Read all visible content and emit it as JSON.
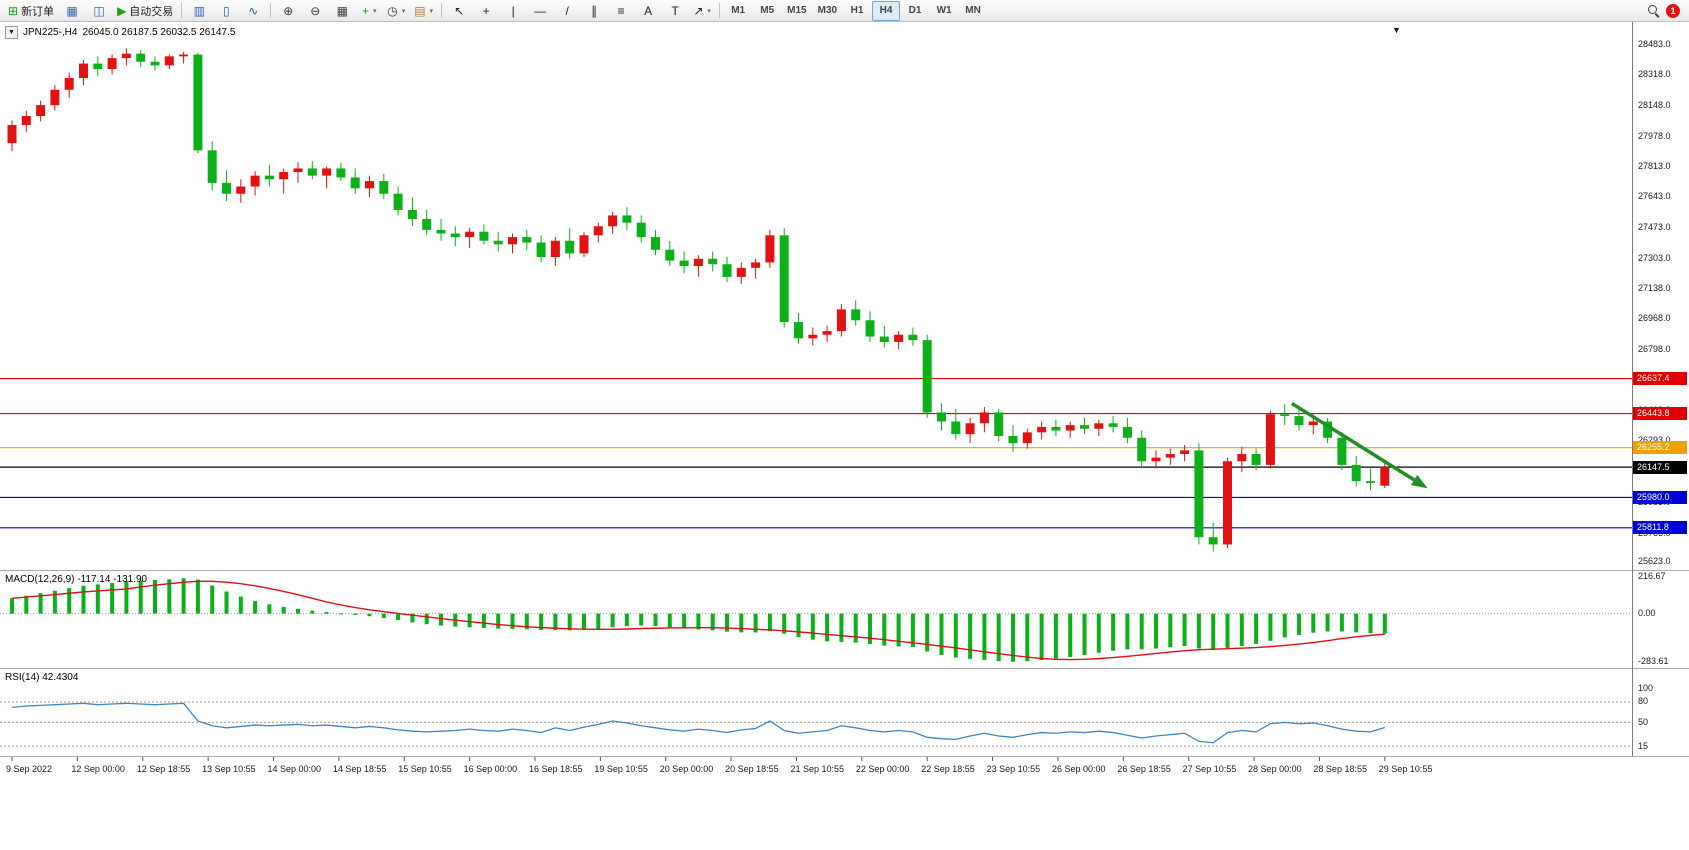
{
  "toolbar": {
    "dropdown_glyph": "▾",
    "groups": [
      {
        "name": "trade",
        "buttons": [
          {
            "name": "new-order",
            "glyph": "⊞",
            "glyph_color": "#1d9e1d",
            "label": "新订单"
          },
          {
            "name": "new-chart",
            "glyph": "▦",
            "glyph_color": "#3566a8"
          },
          {
            "name": "profiles",
            "glyph": "◫",
            "glyph_color": "#3566a8"
          },
          {
            "name": "autotrading",
            "glyph": "▶",
            "glyph_color": "#1d9e1d",
            "label": "自动交易"
          }
        ]
      },
      {
        "name": "chart-types",
        "buttons": [
          {
            "name": "bar-chart",
            "glyph": "▥",
            "glyph_color": "#2a5db0"
          },
          {
            "name": "candlestick-chart",
            "glyph": "▯",
            "glyph_color": "#2a5db0"
          },
          {
            "name": "line-chart",
            "glyph": "∿",
            "glyph_color": "#2a5db0"
          }
        ]
      },
      {
        "name": "zoom-and-windows",
        "buttons": [
          {
            "name": "zoom-in",
            "glyph": "⊕",
            "glyph_color": "#3a3a3a"
          },
          {
            "name": "zoom-out",
            "glyph": "⊖",
            "glyph_color": "#3a3a3a"
          },
          {
            "name": "tile-windows",
            "glyph": "▦",
            "glyph_color": "#3a3a3a"
          },
          {
            "name": "indicators",
            "glyph": "+",
            "glyph_color": "#1d9e1d",
            "dropdown": true
          },
          {
            "name": "periods",
            "glyph": "◷",
            "glyph_color": "#3a3a3a",
            "dropdown": true
          },
          {
            "name": "templates",
            "glyph": "▤",
            "glyph_color": "#b08030",
            "dropdown": true
          }
        ]
      },
      {
        "name": "drawing-tools",
        "buttons": [
          {
            "name": "cursor",
            "glyph": "↖",
            "glyph_color": "#222222"
          },
          {
            "name": "crosshair",
            "glyph": "+",
            "glyph_color": "#222222"
          },
          {
            "name": "vertical-line",
            "glyph": "|",
            "glyph_color": "#222222"
          },
          {
            "name": "horizontal-line",
            "glyph": "—",
            "glyph_color": "#222222"
          },
          {
            "name": "trendline",
            "glyph": "/",
            "glyph_color": "#222222"
          },
          {
            "name": "equidistant-channel",
            "glyph": "∥",
            "glyph_color": "#222222"
          },
          {
            "name": "fibonacci",
            "glyph": "≡",
            "glyph_color": "#222222"
          },
          {
            "name": "text",
            "glyph": "A",
            "glyph_color": "#222222"
          },
          {
            "name": "text-label",
            "glyph": "T",
            "glyph_color": "#222222"
          },
          {
            "name": "arrows",
            "glyph": "↗",
            "glyph_color": "#222222",
            "dropdown": true
          }
        ]
      }
    ],
    "timeframes": {
      "items": [
        "M1",
        "M5",
        "M15",
        "M30",
        "H1",
        "H4",
        "D1",
        "W1",
        "MN"
      ],
      "active": "H4"
    },
    "notification_badge": "1"
  },
  "chart": {
    "symbol_title": "JPN225-,H4",
    "ohlc": "26045.0 26187.5 26032.5 26147.5",
    "icons": {
      "collapse": "▼",
      "scroll_end": "▼"
    },
    "price_axis_ticks": [
      "28483.0",
      "28318.0",
      "28148.0",
      "27978.0",
      "27813.0",
      "27643.0",
      "27473.0",
      "27303.0",
      "27138.0",
      "26968.0",
      "26798.0",
      "26628.0",
      "26463.0",
      "26293.0",
      "26123.0",
      "25953.0",
      "25783.0",
      "25623.0"
    ],
    "lines": [
      {
        "label": "26637.4",
        "price": 26637.4,
        "color": "#e00000"
      },
      {
        "label": "26443.8",
        "price": 26443.8,
        "color": "#e00000"
      },
      {
        "label": "26255.2",
        "price": 26255.2,
        "color": "#f0a000"
      },
      {
        "label": "25980.0",
        "price": 25980.0,
        "color": "#0000d8"
      },
      {
        "label": "25811.8",
        "price": 25811.8,
        "color": "#0000d8"
      }
    ],
    "current_price": {
      "label": "26147.5",
      "price": 26147.5,
      "color": "#000000"
    },
    "arrow": {
      "color": "#1f8f1f",
      "from_index": 89.5,
      "from_price": 26500,
      "to_index": 99,
      "to_price": 26030
    }
  },
  "chart_data": {
    "type": "candlestick",
    "title": "JPN225-,H4 26045.0 26187.5 26032.5 26147.5",
    "symbol": "JPN225-",
    "timeframe": "H4",
    "up_color": "#e31212",
    "down_color": "#0cb018",
    "price_axis_range": [
      25570,
      28610
    ],
    "candles": [
      [
        27940,
        28065,
        27895,
        28040
      ],
      [
        28040,
        28120,
        28000,
        28090
      ],
      [
        28090,
        28175,
        28060,
        28150
      ],
      [
        28150,
        28260,
        28120,
        28235
      ],
      [
        28235,
        28330,
        28190,
        28300
      ],
      [
        28300,
        28400,
        28260,
        28380
      ],
      [
        28380,
        28420,
        28310,
        28350
      ],
      [
        28350,
        28430,
        28320,
        28410
      ],
      [
        28410,
        28465,
        28370,
        28435
      ],
      [
        28435,
        28455,
        28360,
        28390
      ],
      [
        28390,
        28420,
        28340,
        28370
      ],
      [
        28370,
        28430,
        28350,
        28420
      ],
      [
        28420,
        28445,
        28380,
        28430
      ],
      [
        28430,
        28440,
        27885,
        27900
      ],
      [
        27900,
        27950,
        27680,
        27720
      ],
      [
        27720,
        27790,
        27620,
        27660
      ],
      [
        27660,
        27740,
        27610,
        27700
      ],
      [
        27700,
        27785,
        27650,
        27760
      ],
      [
        27760,
        27820,
        27700,
        27740
      ],
      [
        27740,
        27800,
        27660,
        27780
      ],
      [
        27780,
        27835,
        27720,
        27800
      ],
      [
        27800,
        27840,
        27740,
        27760
      ],
      [
        27760,
        27810,
        27690,
        27800
      ],
      [
        27800,
        27830,
        27730,
        27750
      ],
      [
        27750,
        27800,
        27660,
        27690
      ],
      [
        27690,
        27760,
        27640,
        27730
      ],
      [
        27730,
        27770,
        27630,
        27660
      ],
      [
        27660,
        27700,
        27540,
        27570
      ],
      [
        27570,
        27640,
        27480,
        27520
      ],
      [
        27520,
        27570,
        27430,
        27460
      ],
      [
        27460,
        27520,
        27400,
        27440
      ],
      [
        27440,
        27480,
        27370,
        27420
      ],
      [
        27420,
        27470,
        27360,
        27450
      ],
      [
        27450,
        27490,
        27380,
        27400
      ],
      [
        27400,
        27450,
        27340,
        27380
      ],
      [
        27380,
        27440,
        27330,
        27420
      ],
      [
        27420,
        27460,
        27350,
        27390
      ],
      [
        27390,
        27430,
        27280,
        27310
      ],
      [
        27310,
        27420,
        27260,
        27400
      ],
      [
        27400,
        27470,
        27300,
        27330
      ],
      [
        27330,
        27450,
        27310,
        27430
      ],
      [
        27430,
        27500,
        27390,
        27480
      ],
      [
        27480,
        27560,
        27440,
        27540
      ],
      [
        27540,
        27585,
        27460,
        27500
      ],
      [
        27500,
        27540,
        27390,
        27420
      ],
      [
        27420,
        27460,
        27320,
        27350
      ],
      [
        27350,
        27400,
        27260,
        27290
      ],
      [
        27290,
        27340,
        27220,
        27260
      ],
      [
        27260,
        27320,
        27200,
        27300
      ],
      [
        27300,
        27340,
        27230,
        27270
      ],
      [
        27270,
        27310,
        27170,
        27200
      ],
      [
        27200,
        27280,
        27160,
        27250
      ],
      [
        27250,
        27300,
        27190,
        27280
      ],
      [
        27280,
        27460,
        27250,
        27430
      ],
      [
        27430,
        27470,
        26920,
        26950
      ],
      [
        26950,
        27000,
        26830,
        26860
      ],
      [
        26860,
        26920,
        26820,
        26880
      ],
      [
        26880,
        26930,
        26840,
        26900
      ],
      [
        26900,
        27050,
        26870,
        27020
      ],
      [
        27020,
        27070,
        26930,
        26960
      ],
      [
        26960,
        27010,
        26840,
        26870
      ],
      [
        26870,
        26930,
        26810,
        26840
      ],
      [
        26840,
        26900,
        26800,
        26880
      ],
      [
        26880,
        26920,
        26820,
        26850
      ],
      [
        26850,
        26880,
        26420,
        26450
      ],
      [
        26450,
        26500,
        26350,
        26400
      ],
      [
        26400,
        26470,
        26300,
        26330
      ],
      [
        26330,
        26420,
        26280,
        26390
      ],
      [
        26390,
        26480,
        26340,
        26450
      ],
      [
        26450,
        26470,
        26290,
        26320
      ],
      [
        26320,
        26380,
        26230,
        26280
      ],
      [
        26280,
        26360,
        26250,
        26340
      ],
      [
        26340,
        26400,
        26300,
        26370
      ],
      [
        26370,
        26410,
        26320,
        26350
      ],
      [
        26350,
        26400,
        26310,
        26380
      ],
      [
        26380,
        26420,
        26330,
        26360
      ],
      [
        26360,
        26410,
        26320,
        26390
      ],
      [
        26390,
        26430,
        26340,
        26370
      ],
      [
        26370,
        26420,
        26280,
        26310
      ],
      [
        26310,
        26350,
        26140,
        26180
      ],
      [
        26180,
        26240,
        26140,
        26200
      ],
      [
        26200,
        26250,
        26160,
        26220
      ],
      [
        26220,
        26270,
        26180,
        26240
      ],
      [
        26240,
        26280,
        25720,
        25760
      ],
      [
        25760,
        25840,
        25680,
        25720
      ],
      [
        25720,
        26200,
        25700,
        26180
      ],
      [
        26180,
        26260,
        26120,
        26220
      ],
      [
        26220,
        26250,
        26130,
        26160
      ],
      [
        26160,
        26460,
        26140,
        26440
      ],
      [
        26440,
        26495,
        26380,
        26430
      ],
      [
        26430,
        26470,
        26350,
        26380
      ],
      [
        26380,
        26430,
        26330,
        26400
      ],
      [
        26400,
        26420,
        26280,
        26310
      ],
      [
        26310,
        26340,
        26130,
        26160
      ],
      [
        26160,
        26210,
        26040,
        26070
      ],
      [
        26070,
        26140,
        26020,
        26060
      ],
      [
        26045,
        26187.5,
        26032.5,
        26147.5
      ]
    ],
    "time_labels": [
      "9 Sep 2022",
      "12 Sep 00:00",
      "12 Sep 18:55",
      "13 Sep 10:55",
      "14 Sep 00:00",
      "14 Sep 18:55",
      "15 Sep 10:55",
      "16 Sep 00:00",
      "16 Sep 18:55",
      "19 Sep 10:55",
      "20 Sep 00:00",
      "20 Sep 18:55",
      "21 Sep 10:55",
      "22 Sep 00:00",
      "22 Sep 18:55",
      "23 Sep 10:55",
      "26 Sep 00:00",
      "26 Sep 18:55",
      "27 Sep 10:55",
      "28 Sep 00:00",
      "28 Sep 18:55",
      "29 Sep 10:55"
    ],
    "indicators": {
      "macd": {
        "label": "MACD(12,26,9)",
        "values_text": "-117.14 -131.90",
        "axis": [
          "216.67",
          "0.00",
          "-283.61"
        ],
        "ylim": [
          -320,
          245
        ],
        "histogram_color": "#0cb018",
        "signal_color": "#e01010",
        "histogram": [
          90,
          105,
          120,
          135,
          150,
          165,
          172,
          180,
          190,
          195,
          198,
          202,
          208,
          200,
          165,
          130,
          100,
          75,
          55,
          40,
          28,
          18,
          10,
          2,
          -8,
          -15,
          -25,
          -38,
          -52,
          -62,
          -70,
          -76,
          -80,
          -84,
          -88,
          -90,
          -92,
          -96,
          -97,
          -98,
          -96,
          -90,
          -80,
          -73,
          -70,
          -73,
          -80,
          -88,
          -93,
          -98,
          -106,
          -110,
          -111,
          -103,
          -118,
          -138,
          -153,
          -163,
          -166,
          -170,
          -178,
          -188,
          -193,
          -196,
          -223,
          -243,
          -258,
          -266,
          -273,
          -279,
          -283,
          -280,
          -273,
          -265,
          -255,
          -243,
          -230,
          -218,
          -210,
          -210,
          -205,
          -198,
          -190,
          -205,
          -215,
          -205,
          -190,
          -178,
          -160,
          -140,
          -125,
          -112,
          -105,
          -105,
          -110,
          -115,
          -117.14
        ]
      },
      "rsi": {
        "label": "RSI(14)",
        "value_text": "42.4304",
        "axis": [
          "100",
          "80",
          "50",
          "15"
        ],
        "ylim": [
          0,
          100
        ],
        "levels": [
          80,
          50,
          15
        ],
        "line_color": "#3d85c8",
        "values": [
          72,
          74,
          75,
          76,
          77,
          78,
          76,
          77,
          78,
          77,
          76,
          77,
          78,
          52,
          45,
          42,
          44,
          46,
          45,
          46,
          47,
          45,
          46,
          44,
          42,
          44,
          42,
          39,
          37,
          36,
          37,
          38,
          40,
          38,
          37,
          40,
          38,
          35,
          42,
          38,
          43,
          47,
          52,
          49,
          45,
          42,
          39,
          37,
          40,
          38,
          35,
          39,
          41,
          52,
          38,
          34,
          36,
          38,
          45,
          42,
          38,
          36,
          38,
          36,
          28,
          26,
          25,
          30,
          34,
          30,
          28,
          32,
          35,
          34,
          36,
          35,
          37,
          35,
          31,
          27,
          30,
          32,
          34,
          22,
          20,
          35,
          38,
          36,
          48,
          50,
          48,
          49,
          45,
          40,
          37,
          36,
          42.43
        ]
      }
    }
  }
}
